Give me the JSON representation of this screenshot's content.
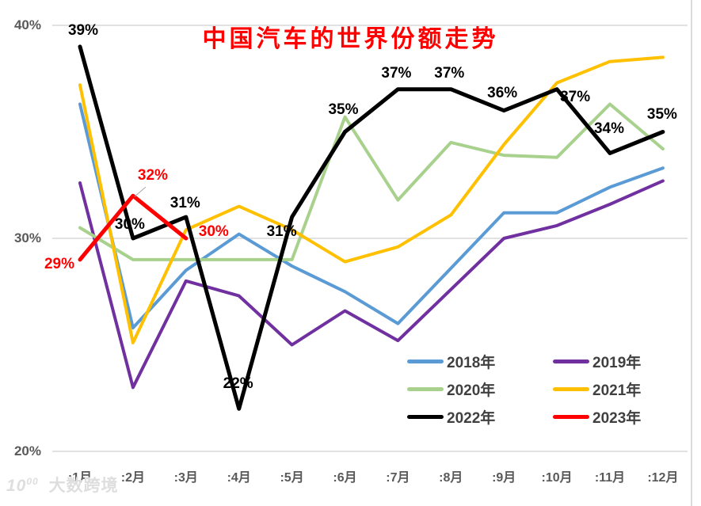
{
  "title": {
    "text": "中国汽车的世界份额走势",
    "color": "#ff0000"
  },
  "watermark": {
    "logo_main": "10",
    "logo_sup": "00",
    "text": "大数跨境"
  },
  "chart_data": {
    "type": "line",
    "title": "中国汽车的世界份额走势",
    "categories": [
      ":1月",
      ":2月",
      ":3月",
      ":4月",
      ":5月",
      ":6月",
      ":7月",
      ":8月",
      ":9月",
      ":10月",
      ":11月",
      ":12月"
    ],
    "xlabel": "",
    "ylabel": "",
    "y_axis": {
      "ticks": [
        "40%",
        "30%",
        "20%"
      ],
      "tick_values": [
        40,
        30,
        20
      ],
      "min": 20,
      "max": 40,
      "unit": "%"
    },
    "grid": true,
    "legend_position": "inside-bottom-right",
    "gridline_color": "#d9d9d9",
    "axis_text_color": "#595959",
    "series": [
      {
        "name": "2018年",
        "color": "#5B9BD5",
        "width": 4,
        "values": [
          36.3,
          25.8,
          28.5,
          30.2,
          28.7,
          27.5,
          26.0,
          28.6,
          31.2,
          31.2,
          32.4,
          33.3
        ],
        "point_labels": [],
        "label_color": "#000000"
      },
      {
        "name": "2019年",
        "color": "#7030A0",
        "width": 4,
        "values": [
          32.6,
          23.0,
          28.0,
          27.3,
          25.0,
          26.6,
          25.2,
          27.6,
          30.0,
          30.6,
          31.6,
          32.7
        ],
        "point_labels": [],
        "label_color": "#000000"
      },
      {
        "name": "2020年",
        "color": "#A9D18E",
        "width": 4,
        "values": [
          30.5,
          29.0,
          29.0,
          29.0,
          29.0,
          35.7,
          31.8,
          34.5,
          33.9,
          33.8,
          36.3,
          34.2
        ],
        "point_labels": [],
        "label_color": "#000000"
      },
      {
        "name": "2021年",
        "color": "#FFC000",
        "width": 4,
        "values": [
          37.2,
          25.1,
          30.4,
          31.5,
          30.4,
          28.9,
          29.6,
          31.1,
          34.4,
          37.3,
          38.3,
          38.5
        ],
        "point_labels": [],
        "label_color": "#000000"
      },
      {
        "name": "2022年",
        "color": "#000000",
        "width": 5,
        "values": [
          39,
          30,
          31,
          22,
          31,
          35,
          37,
          37,
          36,
          37,
          34,
          35
        ],
        "point_labels": [
          "39%",
          "30%",
          "31%",
          "22%",
          "31%",
          "35%",
          "37%",
          "37%",
          "36%",
          "37%",
          "34%",
          "35%"
        ],
        "label_color": "#000000"
      },
      {
        "name": "2023年",
        "color": "#FF0000",
        "width": 5,
        "values": [
          29,
          32,
          30,
          null,
          null,
          null,
          null,
          null,
          null,
          null,
          null,
          null
        ],
        "point_labels": [
          "29%",
          "32%",
          "30%"
        ],
        "label_color": "#FF0000"
      }
    ]
  }
}
